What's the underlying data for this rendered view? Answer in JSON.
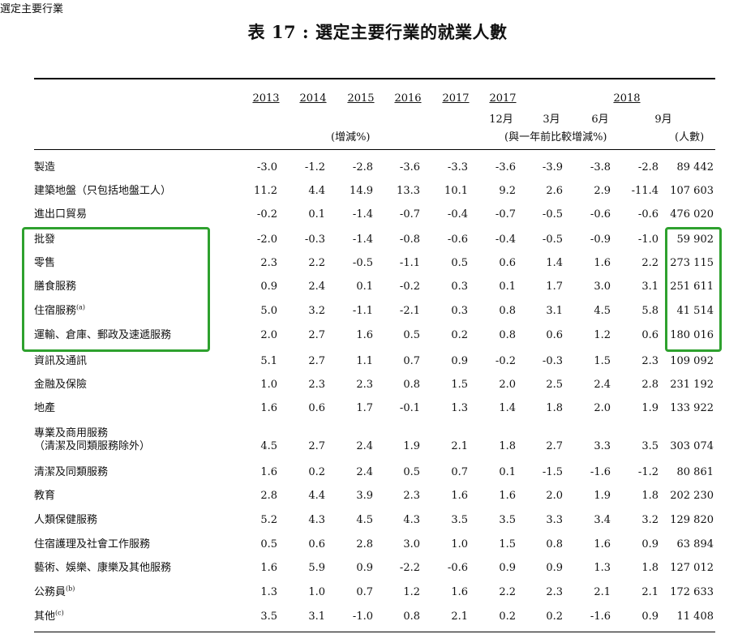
{
  "title": "表 17 : 選定主要行業的就業人數",
  "header": {
    "row_label": "選定主要行業",
    "years": [
      "2013",
      "2014",
      "2015",
      "2016",
      "2017",
      "2017",
      "2018"
    ],
    "sub_labels": [
      "12月",
      "3月",
      "6月",
      "9月"
    ],
    "unit_change": "(增減%)",
    "unit_change_yoy": "(與一年前比較增減%)",
    "unit_persons": "(人數)"
  },
  "rows": [
    {
      "label": "製造",
      "values": [
        "-3.0",
        "-1.2",
        "-2.8",
        "-3.6",
        "-3.3",
        "-3.6",
        "-3.9",
        "-3.8",
        "-2.8",
        "89 442"
      ]
    },
    {
      "label": "建築地盤（只包括地盤工人）",
      "values": [
        "11.2",
        "4.4",
        "14.9",
        "13.3",
        "10.1",
        "9.2",
        "2.6",
        "2.9",
        "-11.4",
        "107 603"
      ]
    },
    {
      "label": "進出口貿易",
      "values": [
        "-0.2",
        "0.1",
        "-1.4",
        "-0.7",
        "-0.4",
        "-0.7",
        "-0.5",
        "-0.6",
        "-0.6",
        "476 020"
      ]
    },
    {
      "label": "批發",
      "values": [
        "-2.0",
        "-0.3",
        "-1.4",
        "-0.8",
        "-0.6",
        "-0.4",
        "-0.5",
        "-0.9",
        "-1.0",
        "59 902"
      ]
    },
    {
      "label": "零售",
      "values": [
        "2.3",
        "2.2",
        "-0.5",
        "-1.1",
        "0.5",
        "0.6",
        "1.4",
        "1.6",
        "2.2",
        "273 115"
      ]
    },
    {
      "label": "膳食服務",
      "values": [
        "0.9",
        "2.4",
        "0.1",
        "-0.2",
        "0.3",
        "0.1",
        "1.7",
        "3.0",
        "3.1",
        "251 611"
      ]
    },
    {
      "label": "住宿服務",
      "sup": "(a)",
      "values": [
        "5.0",
        "3.2",
        "-1.1",
        "-2.1",
        "0.3",
        "0.8",
        "3.1",
        "4.5",
        "5.8",
        "41 514"
      ]
    },
    {
      "label": "運輸、倉庫、郵政及速遞服務",
      "values": [
        "2.0",
        "2.7",
        "1.6",
        "0.5",
        "0.2",
        "0.8",
        "0.6",
        "1.2",
        "0.6",
        "180 016"
      ]
    },
    {
      "label": "資訊及通訊",
      "values": [
        "5.1",
        "2.7",
        "1.1",
        "0.7",
        "0.9",
        "-0.2",
        "-0.3",
        "1.5",
        "2.3",
        "109 092"
      ]
    },
    {
      "label": "金融及保險",
      "values": [
        "1.0",
        "2.3",
        "2.3",
        "0.8",
        "1.5",
        "2.0",
        "2.5",
        "2.4",
        "2.8",
        "231 192"
      ]
    },
    {
      "label": "地產",
      "values": [
        "1.6",
        "0.6",
        "1.7",
        "-0.1",
        "1.3",
        "1.4",
        "1.8",
        "2.0",
        "1.9",
        "133 922"
      ]
    },
    {
      "label": "專業及商用服務",
      "label2": "（清潔及同類服務除外）",
      "values": [
        "4.5",
        "2.7",
        "2.4",
        "1.9",
        "2.1",
        "1.8",
        "2.7",
        "3.3",
        "3.5",
        "303 074"
      ]
    },
    {
      "label": "清潔及同類服務",
      "values": [
        "1.6",
        "0.2",
        "2.4",
        "0.5",
        "0.7",
        "0.1",
        "-1.5",
        "-1.6",
        "-1.2",
        "80 861"
      ]
    },
    {
      "label": "教育",
      "values": [
        "2.8",
        "4.4",
        "3.9",
        "2.3",
        "1.6",
        "1.6",
        "2.0",
        "1.9",
        "1.8",
        "202 230"
      ]
    },
    {
      "label": "人類保健服務",
      "values": [
        "5.2",
        "4.3",
        "4.5",
        "4.3",
        "3.5",
        "3.5",
        "3.3",
        "3.4",
        "3.2",
        "129 820"
      ]
    },
    {
      "label": "住宿護理及社會工作服務",
      "values": [
        "0.5",
        "0.6",
        "2.8",
        "3.0",
        "1.0",
        "1.5",
        "0.8",
        "1.6",
        "0.9",
        "63 894"
      ]
    },
    {
      "label": "藝術、娛樂、康樂及其他服務",
      "values": [
        "1.6",
        "5.9",
        "0.9",
        "-2.2",
        "-0.6",
        "0.9",
        "0.9",
        "1.3",
        "1.8",
        "127 012"
      ]
    },
    {
      "label": "公務員",
      "sup": "(b)",
      "values": [
        "1.3",
        "1.0",
        "0.7",
        "1.2",
        "1.6",
        "2.2",
        "2.3",
        "2.1",
        "2.1",
        "172 633"
      ]
    },
    {
      "label": "其他",
      "sup": "(c)",
      "values": [
        "3.5",
        "3.1",
        "-1.0",
        "0.8",
        "2.1",
        "0.2",
        "0.2",
        "-1.6",
        "0.9",
        "11 408"
      ]
    }
  ],
  "highlight_color": "#2ea12e"
}
